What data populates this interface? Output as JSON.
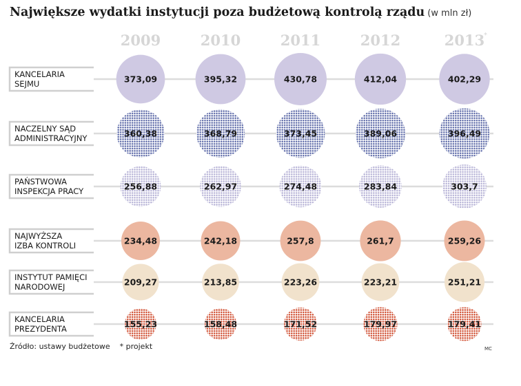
{
  "title": "Największe wydatki instytucji poza budżetową kontrolą rządu",
  "unit": "(w mln zł)",
  "source": "Źródło: ustawy budżetowe",
  "note": "* projekt",
  "credit": "MC",
  "colors": {
    "year_label": "#d6d6d6",
    "line": "#dcdcdc",
    "label_box": "#cfcfcf"
  },
  "chart_data": {
    "type": "bubble-matrix",
    "title": "Największe wydatki instytucji poza budżetową kontrolą rządu",
    "unit": "(w mln zł)",
    "columns": [
      "2009",
      "2010",
      "2011",
      "2012",
      "2013"
    ],
    "columns_note": [
      "",
      "",
      "",
      "",
      "*"
    ],
    "series": [
      {
        "name": "KANCELARIA SEJMU",
        "lines": [
          "KANCELARIA",
          "SEJMU"
        ],
        "values": [
          373.09,
          395.32,
          430.78,
          412.04,
          402.29
        ],
        "labels": [
          "373,09",
          "395,32",
          "430,78",
          "412,04",
          "402,29"
        ],
        "color": "#cfc9e3",
        "pattern": "solid"
      },
      {
        "name": "NACZELNY SĄD ADMINISTRACYJNY",
        "lines": [
          "NACZELNY SĄD",
          "ADMINISTRACYJNY"
        ],
        "values": [
          360.38,
          368.79,
          373.45,
          389.06,
          396.49
        ],
        "labels": [
          "360,38",
          "368,79",
          "373,45",
          "389,06",
          "396,49"
        ],
        "color": "#5d6aa8",
        "pattern": "dots"
      },
      {
        "name": "PAŃSTWOWA INSPEKCJA PRACY",
        "lines": [
          "PAŃSTWOWA",
          "INSPEKCJA PRACY"
        ],
        "values": [
          256.88,
          262.97,
          274.48,
          283.84,
          303.7
        ],
        "labels": [
          "256,88",
          "262,97",
          "274,48",
          "283,84",
          "303,7"
        ],
        "color": "#b6b2d6",
        "pattern": "dots"
      },
      {
        "name": "NAJWYŻSZA IZBA KONTROLI",
        "lines": [
          "NAJWYŻSZA",
          "IZBA KONTROLI"
        ],
        "values": [
          234.48,
          242.18,
          257.8,
          261.7,
          259.26
        ],
        "labels": [
          "234,48",
          "242,18",
          "257,8",
          "261,7",
          "259,26"
        ],
        "color": "#ecb7a0",
        "pattern": "solid"
      },
      {
        "name": "INSTYTUT PAMIĘCI NARODOWEJ",
        "lines": [
          "INSTYTUT PAMIĘCI",
          "NARODOWEJ"
        ],
        "values": [
          209.27,
          213.85,
          223.26,
          223.21,
          251.21
        ],
        "labels": [
          "209,27",
          "213,85",
          "223,26",
          "223,21",
          "251,21"
        ],
        "color": "#f1e2cc",
        "pattern": "solid"
      },
      {
        "name": "KANCELARIA PREZYDENTA",
        "lines": [
          "KANCELARIA",
          "PREZYDENTA"
        ],
        "values": [
          155.23,
          158.48,
          171.52,
          179.97,
          179.41
        ],
        "labels": [
          "155,23",
          "158,48",
          "171,52",
          "179,97",
          "179,41"
        ],
        "color": "#cf4a2c",
        "pattern": "dots"
      }
    ]
  }
}
